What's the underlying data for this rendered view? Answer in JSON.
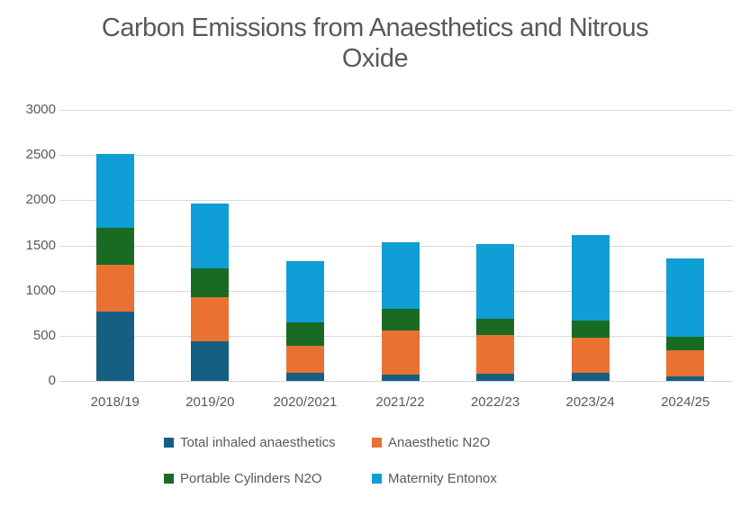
{
  "chart_data": {
    "type": "bar",
    "stacked": true,
    "title": "Carbon Emissions from Anaesthetics and Nitrous Oxide",
    "xlabel": "",
    "ylabel": "",
    "categories": [
      "2018/19",
      "2019/20",
      "2020/2021",
      "2021/22",
      "2022/23",
      "2023/24",
      "2024/25"
    ],
    "series": [
      {
        "name": "Total inhaled anaesthetics",
        "color": "#156082",
        "values": [
          770,
          440,
          90,
          65,
          80,
          90,
          50
        ]
      },
      {
        "name": "Anaesthetic N2O",
        "color": "#E97132",
        "values": [
          520,
          490,
          300,
          490,
          430,
          385,
          290
        ]
      },
      {
        "name": "Portable Cylinders N2O",
        "color": "#196B24",
        "values": [
          405,
          320,
          255,
          245,
          180,
          195,
          150
        ]
      },
      {
        "name": "Maternity Entonox",
        "color": "#0F9ED5",
        "values": [
          820,
          710,
          685,
          740,
          825,
          940,
          870
        ]
      }
    ],
    "totals": [
      2515,
      1960,
      1330,
      1540,
      1515,
      1610,
      1360
    ],
    "ylim": [
      0,
      3000
    ],
    "y_ticks": [
      0,
      500,
      1000,
      1500,
      2000,
      2500,
      3000
    ],
    "grid": true,
    "legend_position": "bottom",
    "text_color": "#595959",
    "gridline_color": "#D9D9D9"
  }
}
